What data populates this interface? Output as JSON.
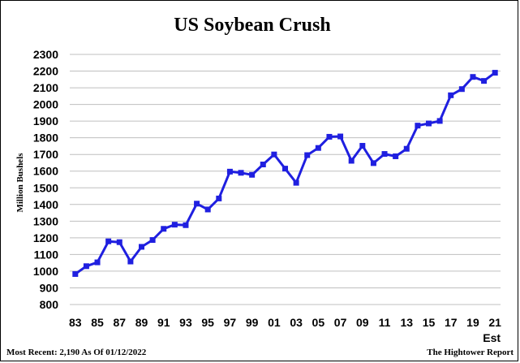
{
  "chart_data": {
    "type": "line",
    "title": "US Soybean Crush",
    "ylabel": "Million Bushels",
    "xlabel": "",
    "ylim": [
      800,
      2300
    ],
    "yticks": [
      800,
      900,
      1000,
      1100,
      1200,
      1300,
      1400,
      1500,
      1600,
      1700,
      1800,
      1900,
      2000,
      2100,
      2200,
      2300
    ],
    "grid": true,
    "x_tick_labels": [
      "83",
      "85",
      "87",
      "89",
      "91",
      "93",
      "95",
      "97",
      "99",
      "01",
      "03",
      "05",
      "07",
      "09",
      "11",
      "13",
      "15",
      "17",
      "19",
      "21"
    ],
    "last_tick_note": "Est",
    "line_color": "#1f1fe0",
    "series": [
      {
        "x": [
          1983,
          1984,
          1985,
          1986,
          1987,
          1988,
          1989,
          1990,
          1991,
          1992,
          1993,
          1994,
          1995,
          1996,
          1997,
          1998,
          1999,
          2000,
          2001,
          2002,
          2003,
          2004,
          2005,
          2006,
          2007,
          2008,
          2009,
          2010,
          2011,
          2012,
          2013,
          2014,
          2015,
          2016,
          2017,
          2018,
          2019,
          2020,
          2021
        ],
        "values": [
          983,
          1030,
          1053,
          1179,
          1174,
          1058,
          1146,
          1187,
          1254,
          1279,
          1276,
          1405,
          1370,
          1436,
          1597,
          1590,
          1578,
          1640,
          1700,
          1615,
          1530,
          1696,
          1739,
          1806,
          1808,
          1662,
          1752,
          1648,
          1703,
          1689,
          1734,
          1873,
          1886,
          1901,
          2055,
          2092,
          2165,
          2141,
          2190
        ]
      }
    ]
  },
  "footer": {
    "left": "Most Recent: 2,190 As Of 01/12/2022",
    "right": "The Hightower Report"
  }
}
